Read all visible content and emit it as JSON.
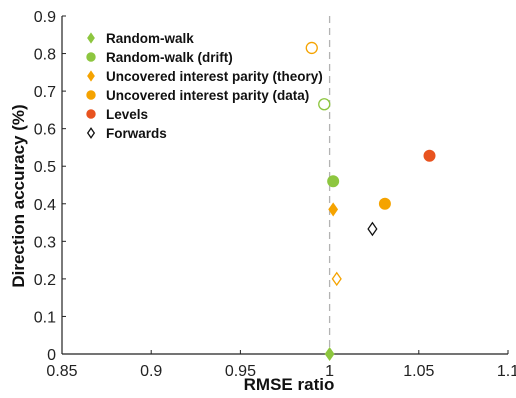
{
  "chart_data": {
    "type": "scatter",
    "title": "",
    "xlabel": "RMSE ratio",
    "ylabel": "Direction accuracy (%)",
    "xlim": [
      0.85,
      1.1
    ],
    "ylim": [
      0,
      0.9
    ],
    "xticks": [
      "0.85",
      "0.9",
      "0.95",
      "1",
      "1.05",
      "1.1"
    ],
    "yticks": [
      "0",
      "0.1",
      "0.2",
      "0.3",
      "0.4",
      "0.5",
      "0.6",
      "0.7",
      "0.8",
      "0.9"
    ],
    "grid": false,
    "reference_line": {
      "x": 1.0,
      "style": "dashed"
    },
    "legend_position": "top-left",
    "series": [
      {
        "name": "Random-walk",
        "marker": "diamond",
        "color": "#8dc63f",
        "points": [
          {
            "x": 1.0,
            "y": 0.0,
            "filled": true
          }
        ]
      },
      {
        "name": "Random-walk (drift)",
        "marker": "circle",
        "color": "#8dc63f",
        "points": [
          {
            "x": 1.002,
            "y": 0.46,
            "filled": true
          },
          {
            "x": 0.997,
            "y": 0.665,
            "filled": false
          }
        ]
      },
      {
        "name": "Uncovered interest parity (theory)",
        "marker": "diamond",
        "color": "#f5a300",
        "points": [
          {
            "x": 1.002,
            "y": 0.385,
            "filled": true
          },
          {
            "x": 1.004,
            "y": 0.2,
            "filled": false
          }
        ]
      },
      {
        "name": "Uncovered interest parity (data)",
        "marker": "circle",
        "color": "#f5a300",
        "points": [
          {
            "x": 1.031,
            "y": 0.4,
            "filled": true
          },
          {
            "x": 0.99,
            "y": 0.815,
            "filled": false
          }
        ]
      },
      {
        "name": "Levels",
        "marker": "circle",
        "color": "#e8531f",
        "points": [
          {
            "x": 1.056,
            "y": 0.528,
            "filled": true
          }
        ]
      },
      {
        "name": "Forwards",
        "marker": "diamond",
        "color": "#111111",
        "points": [
          {
            "x": 1.024,
            "y": 0.333,
            "filled": false
          }
        ]
      }
    ]
  }
}
